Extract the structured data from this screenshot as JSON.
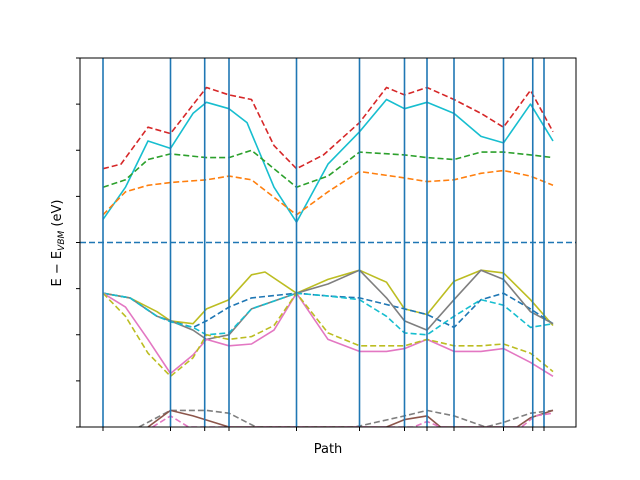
{
  "chart_data": {
    "type": "line",
    "title": "",
    "xlabel": "Path",
    "ylabel": "E − E",
    "ylabel_sub": "VBM",
    "ylabel_unit": " (eV)",
    "xlim": [
      0,
      1
    ],
    "ylim": [
      -2.0,
      2.0
    ],
    "y_ticks": [
      -2.0,
      -1.5,
      -1.0,
      -0.5,
      0.0,
      0.5,
      1.0,
      1.5,
      2.0
    ],
    "x_ticks": [
      0.0,
      0.15,
      0.226,
      0.28,
      0.43,
      0.57,
      0.67,
      0.72,
      0.78,
      0.89,
      0.955,
      0.98
    ],
    "high_symmetry_lines": [
      0.0,
      0.15,
      0.226,
      0.28,
      0.43,
      0.57,
      0.67,
      0.72,
      0.78,
      0.89,
      0.955,
      0.98
    ],
    "fermi_level": 0.0,
    "grid": false,
    "legend": "none",
    "series": [
      {
        "color": "#d62728",
        "dash": true,
        "points": [
          [
            0,
            0.8
          ],
          [
            0.04,
            0.85
          ],
          [
            0.1,
            1.25
          ],
          [
            0.15,
            1.18
          ],
          [
            0.23,
            1.68
          ],
          [
            0.28,
            1.6
          ],
          [
            0.33,
            1.55
          ],
          [
            0.38,
            1.05
          ],
          [
            0.43,
            0.8
          ],
          [
            0.49,
            0.95
          ],
          [
            0.57,
            1.3
          ],
          [
            0.63,
            1.68
          ],
          [
            0.67,
            1.6
          ],
          [
            0.72,
            1.68
          ],
          [
            0.78,
            1.55
          ],
          [
            0.84,
            1.4
          ],
          [
            0.89,
            1.25
          ],
          [
            0.95,
            1.65
          ],
          [
            1.0,
            1.2
          ]
        ]
      },
      {
        "color": "#17becf",
        "dash": false,
        "points": [
          [
            0,
            0.25
          ],
          [
            0.05,
            0.6
          ],
          [
            0.1,
            1.1
          ],
          [
            0.15,
            1.02
          ],
          [
            0.2,
            1.4
          ],
          [
            0.23,
            1.52
          ],
          [
            0.28,
            1.45
          ],
          [
            0.32,
            1.3
          ],
          [
            0.38,
            0.6
          ],
          [
            0.43,
            0.22
          ],
          [
            0.5,
            0.85
          ],
          [
            0.57,
            1.2
          ],
          [
            0.63,
            1.55
          ],
          [
            0.67,
            1.45
          ],
          [
            0.72,
            1.52
          ],
          [
            0.78,
            1.4
          ],
          [
            0.84,
            1.15
          ],
          [
            0.89,
            1.08
          ],
          [
            0.95,
            1.5
          ],
          [
            1.0,
            1.1
          ]
        ]
      },
      {
        "color": "#2ca02c",
        "dash": true,
        "points": [
          [
            0,
            0.6
          ],
          [
            0.05,
            0.68
          ],
          [
            0.1,
            0.9
          ],
          [
            0.15,
            0.96
          ],
          [
            0.23,
            0.92
          ],
          [
            0.28,
            0.92
          ],
          [
            0.33,
            1.0
          ],
          [
            0.43,
            0.6
          ],
          [
            0.5,
            0.72
          ],
          [
            0.57,
            0.98
          ],
          [
            0.67,
            0.95
          ],
          [
            0.72,
            0.92
          ],
          [
            0.78,
            0.9
          ],
          [
            0.84,
            0.98
          ],
          [
            0.89,
            0.98
          ],
          [
            0.95,
            0.95
          ],
          [
            1.0,
            0.92
          ]
        ]
      },
      {
        "color": "#ff7f0e",
        "dash": true,
        "points": [
          [
            0,
            0.3
          ],
          [
            0.05,
            0.55
          ],
          [
            0.1,
            0.62
          ],
          [
            0.15,
            0.65
          ],
          [
            0.23,
            0.68
          ],
          [
            0.28,
            0.72
          ],
          [
            0.33,
            0.68
          ],
          [
            0.43,
            0.3
          ],
          [
            0.5,
            0.55
          ],
          [
            0.57,
            0.77
          ],
          [
            0.67,
            0.7
          ],
          [
            0.72,
            0.66
          ],
          [
            0.78,
            0.68
          ],
          [
            0.84,
            0.75
          ],
          [
            0.89,
            0.78
          ],
          [
            0.95,
            0.72
          ],
          [
            1.0,
            0.62
          ]
        ]
      },
      {
        "color": "#bcbd22",
        "dash": false,
        "points": [
          [
            0,
            -0.55
          ],
          [
            0.06,
            -0.6
          ],
          [
            0.12,
            -0.75
          ],
          [
            0.15,
            -0.85
          ],
          [
            0.2,
            -0.88
          ],
          [
            0.23,
            -0.72
          ],
          [
            0.28,
            -0.62
          ],
          [
            0.33,
            -0.35
          ],
          [
            0.36,
            -0.32
          ],
          [
            0.43,
            -0.55
          ],
          [
            0.5,
            -0.4
          ],
          [
            0.57,
            -0.3
          ],
          [
            0.63,
            -0.43
          ],
          [
            0.67,
            -0.72
          ],
          [
            0.72,
            -0.78
          ],
          [
            0.78,
            -0.42
          ],
          [
            0.84,
            -0.3
          ],
          [
            0.89,
            -0.33
          ],
          [
            0.95,
            -0.62
          ],
          [
            1.0,
            -0.9
          ]
        ]
      },
      {
        "color": "#1f77b4",
        "dash": true,
        "points": [
          [
            0,
            -0.55
          ],
          [
            0.06,
            -0.6
          ],
          [
            0.12,
            -0.8
          ],
          [
            0.15,
            -0.85
          ],
          [
            0.2,
            -0.92
          ],
          [
            0.23,
            -0.85
          ],
          [
            0.28,
            -0.7
          ],
          [
            0.33,
            -0.6
          ],
          [
            0.43,
            -0.55
          ],
          [
            0.5,
            -0.58
          ],
          [
            0.57,
            -0.6
          ],
          [
            0.67,
            -0.72
          ],
          [
            0.72,
            -0.78
          ],
          [
            0.78,
            -0.92
          ],
          [
            0.84,
            -0.62
          ],
          [
            0.89,
            -0.55
          ],
          [
            0.95,
            -0.72
          ],
          [
            1.0,
            -0.88
          ]
        ]
      },
      {
        "color": "#7f7f7f",
        "dash": false,
        "points": [
          [
            0,
            -0.55
          ],
          [
            0.06,
            -0.6
          ],
          [
            0.12,
            -0.8
          ],
          [
            0.15,
            -0.85
          ],
          [
            0.2,
            -0.95
          ],
          [
            0.23,
            -1.05
          ],
          [
            0.28,
            -1.0
          ],
          [
            0.33,
            -0.72
          ],
          [
            0.43,
            -0.55
          ],
          [
            0.5,
            -0.45
          ],
          [
            0.57,
            -0.3
          ],
          [
            0.63,
            -0.6
          ],
          [
            0.67,
            -0.85
          ],
          [
            0.72,
            -0.95
          ],
          [
            0.78,
            -0.62
          ],
          [
            0.84,
            -0.3
          ],
          [
            0.89,
            -0.4
          ],
          [
            0.95,
            -0.75
          ],
          [
            1.0,
            -0.88
          ]
        ]
      },
      {
        "color": "#17becf",
        "dash": true,
        "points": [
          [
            0,
            -0.55
          ],
          [
            0.06,
            -0.6
          ],
          [
            0.12,
            -0.8
          ],
          [
            0.15,
            -0.86
          ],
          [
            0.2,
            -0.92
          ],
          [
            0.23,
            -1.0
          ],
          [
            0.28,
            -0.98
          ],
          [
            0.33,
            -0.72
          ],
          [
            0.43,
            -0.55
          ],
          [
            0.5,
            -0.58
          ],
          [
            0.57,
            -0.62
          ],
          [
            0.63,
            -0.8
          ],
          [
            0.67,
            -0.98
          ],
          [
            0.72,
            -1.0
          ],
          [
            0.78,
            -0.8
          ],
          [
            0.84,
            -0.62
          ],
          [
            0.89,
            -0.68
          ],
          [
            0.95,
            -0.92
          ],
          [
            1.0,
            -0.88
          ]
        ]
      },
      {
        "color": "#e377c2",
        "dash": false,
        "points": [
          [
            0,
            -0.55
          ],
          [
            0.05,
            -0.7
          ],
          [
            0.1,
            -1.05
          ],
          [
            0.15,
            -1.42
          ],
          [
            0.2,
            -1.22
          ],
          [
            0.23,
            -1.05
          ],
          [
            0.28,
            -1.12
          ],
          [
            0.33,
            -1.1
          ],
          [
            0.38,
            -0.95
          ],
          [
            0.43,
            -0.55
          ],
          [
            0.5,
            -1.05
          ],
          [
            0.57,
            -1.18
          ],
          [
            0.63,
            -1.18
          ],
          [
            0.67,
            -1.15
          ],
          [
            0.72,
            -1.05
          ],
          [
            0.78,
            -1.18
          ],
          [
            0.84,
            -1.18
          ],
          [
            0.89,
            -1.15
          ],
          [
            0.95,
            -1.3
          ],
          [
            1.0,
            -1.45
          ]
        ]
      },
      {
        "color": "#bcbd22",
        "dash": true,
        "points": [
          [
            0,
            -0.55
          ],
          [
            0.05,
            -0.8
          ],
          [
            0.1,
            -1.2
          ],
          [
            0.15,
            -1.45
          ],
          [
            0.2,
            -1.25
          ],
          [
            0.23,
            -1.0
          ],
          [
            0.28,
            -1.05
          ],
          [
            0.33,
            -1.02
          ],
          [
            0.38,
            -0.9
          ],
          [
            0.43,
            -0.55
          ],
          [
            0.5,
            -0.98
          ],
          [
            0.57,
            -1.12
          ],
          [
            0.63,
            -1.12
          ],
          [
            0.67,
            -1.12
          ],
          [
            0.72,
            -1.05
          ],
          [
            0.78,
            -1.12
          ],
          [
            0.84,
            -1.12
          ],
          [
            0.89,
            -1.1
          ],
          [
            0.95,
            -1.2
          ],
          [
            1.0,
            -1.4
          ]
        ]
      },
      {
        "color": "#7f7f7f",
        "dash": true,
        "points": [
          [
            0.08,
            -2.0
          ],
          [
            0.15,
            -1.82
          ],
          [
            0.23,
            -1.82
          ],
          [
            0.28,
            -1.85
          ],
          [
            0.34,
            -2.0
          ],
          [
            0.56,
            -2.0
          ],
          [
            0.67,
            -1.88
          ],
          [
            0.72,
            -1.82
          ],
          [
            0.78,
            -1.88
          ],
          [
            0.85,
            -2.0
          ],
          [
            0.89,
            -1.95
          ],
          [
            0.95,
            -1.85
          ],
          [
            1.0,
            -1.82
          ]
        ]
      },
      {
        "color": "#8c564b",
        "dash": false,
        "points": [
          [
            0.1,
            -2.0
          ],
          [
            0.15,
            -1.82
          ],
          [
            0.2,
            -1.88
          ],
          [
            0.28,
            -2.0
          ],
          [
            0.63,
            -2.0
          ],
          [
            0.67,
            -1.92
          ],
          [
            0.72,
            -1.88
          ],
          [
            0.75,
            -2.0
          ],
          [
            0.92,
            -2.0
          ],
          [
            0.95,
            -1.9
          ],
          [
            1.0,
            -1.82
          ]
        ]
      },
      {
        "color": "#e377c2",
        "dash": true,
        "points": [
          [
            0.11,
            -2.0
          ],
          [
            0.15,
            -1.88
          ],
          [
            0.19,
            -2.0
          ],
          [
            0.69,
            -2.0
          ],
          [
            0.72,
            -1.94
          ],
          [
            0.75,
            -2.0
          ],
          [
            0.93,
            -2.0
          ],
          [
            0.96,
            -1.88
          ],
          [
            1.0,
            -1.85
          ]
        ]
      }
    ]
  }
}
